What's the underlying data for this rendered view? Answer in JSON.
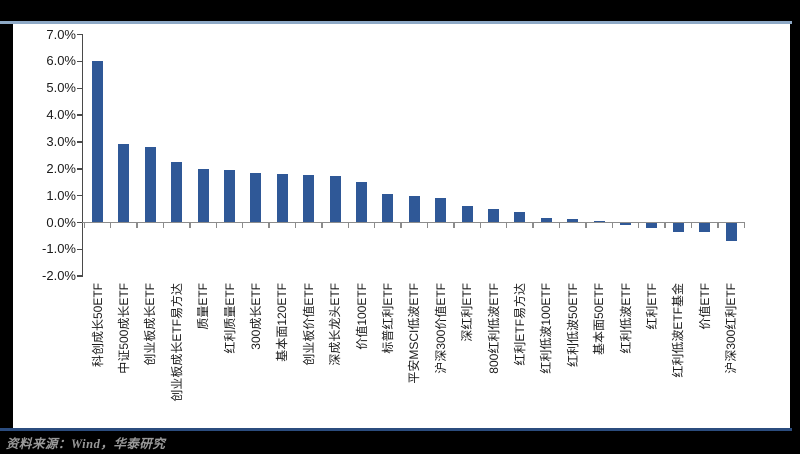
{
  "figure": {
    "source_note": "资料来源：Wind，华泰研究",
    "colors": {
      "background": "#000000",
      "panel": "#ffffff",
      "top_rule": "#8EA9C6",
      "bottom_rule": "#2B4C7E",
      "bar": "#2F5897",
      "value_axis": "#4a4a4a",
      "category_axis": "#8c8c8c",
      "tick_label_text": "#1a1a1a",
      "source_note_text": "#9a9a9a"
    }
  },
  "chart_data": {
    "type": "bar",
    "title": "",
    "xlabel": "",
    "ylabel": "",
    "value_format": "percent",
    "ylim": [
      -2.0,
      7.0
    ],
    "y_tick_step": 1.0,
    "y_tick_labels": [
      "7.0%",
      "6.0%",
      "5.0%",
      "4.0%",
      "3.0%",
      "2.0%",
      "1.0%",
      "0.0%",
      "-1.0%",
      "-2.0%"
    ],
    "y_tick_values": [
      7,
      6,
      5,
      4,
      3,
      2,
      1,
      0,
      -1,
      -2
    ],
    "grid": false,
    "legend": false,
    "bar_color": "#2F5897",
    "categories": [
      "科创成长50ETF",
      "中证500成长ETF",
      "创业板成长ETF",
      "创业板成长ETF易方达",
      "质量ETF",
      "红利质量ETF",
      "300成长ETF",
      "基本面120ETF",
      "创业板价值ETF",
      "深成长龙头ETF",
      "价值100ETF",
      "标普红利ETF",
      "平安MSCI低波ETF",
      "沪深300价值ETF",
      "深红利ETF",
      "800红利低波ETF",
      "红利ETF易方达",
      "红利低波100ETF",
      "红利低波50ETF",
      "基本面50ETF",
      "红利低波ETF",
      "红利ETF",
      "红利低波ETF基金",
      "价值ETF",
      "沪深300红利ETF"
    ],
    "values": [
      6.03,
      2.92,
      2.83,
      2.25,
      1.98,
      1.96,
      1.85,
      1.81,
      1.78,
      1.72,
      1.51,
      1.08,
      1.0,
      0.91,
      0.6,
      0.52,
      0.4,
      0.15,
      0.12,
      0.06,
      -0.08,
      -0.22,
      -0.35,
      -0.37,
      -0.7
    ]
  }
}
